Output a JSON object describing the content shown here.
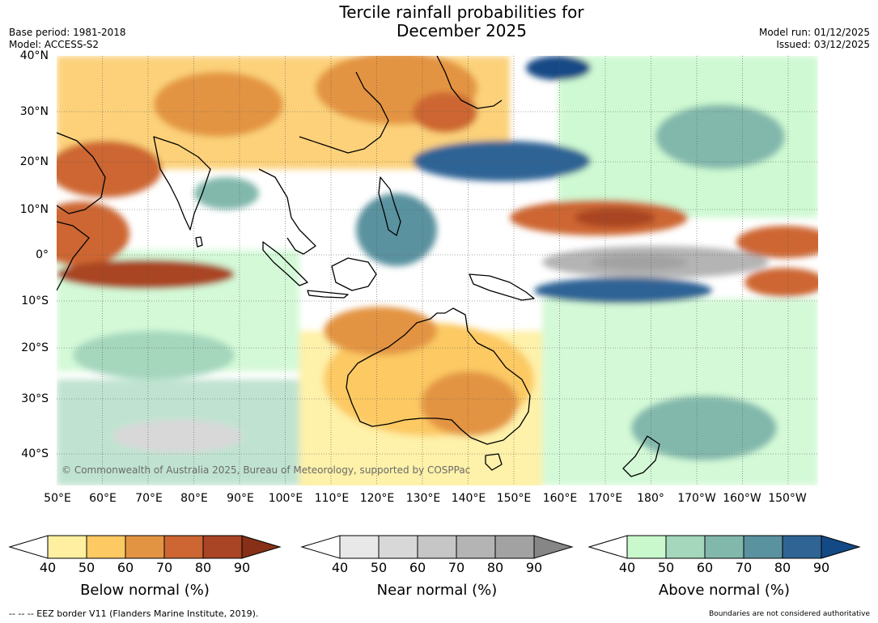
{
  "header": {
    "title_line1": "Tercile rainfall probabilities for",
    "title_line2": "December 2025",
    "base_period": "Base period: 1981-2018",
    "model": "Model: ACCESS-S2",
    "model_run": "Model run: 01/12/2025",
    "issued": "Issued: 03/12/2025"
  },
  "map": {
    "copyright": "© Commonwealth of Australia 2025, Bureau of Meteorology, supported by COSPPac",
    "lat_labels": [
      "40°N",
      "30°N",
      "20°N",
      "10°N",
      "0°",
      "10°S",
      "20°S",
      "30°S",
      "40°S"
    ],
    "lon_labels": [
      "50°E",
      "60°E",
      "70°E",
      "80°E",
      "90°E",
      "100°E",
      "110°E",
      "120°E",
      "130°E",
      "140°E",
      "150°E",
      "160°E",
      "170°E",
      "180°",
      "170°W",
      "160°W",
      "150°W"
    ]
  },
  "legends": {
    "below": {
      "label": "Below normal (%)",
      "ticks": [
        "40",
        "50",
        "60",
        "70",
        "80",
        "90"
      ],
      "colors": [
        "#fef0a0",
        "#fcc963",
        "#e39443",
        "#cd6632",
        "#a94424",
        "#863018"
      ]
    },
    "near": {
      "label": "Near normal (%)",
      "ticks": [
        "40",
        "50",
        "60",
        "70",
        "80",
        "90"
      ],
      "colors": [
        "#e8e8e8",
        "#d8d8d8",
        "#c6c6c6",
        "#b4b4b4",
        "#a2a2a2",
        "#868686"
      ]
    },
    "above": {
      "label": "Above normal (%)",
      "ticks": [
        "40",
        "50",
        "60",
        "70",
        "80",
        "90"
      ],
      "colors": [
        "#c9f8cd",
        "#a5d7bd",
        "#82b8ac",
        "#5a929f",
        "#2f6495",
        "#134a85"
      ]
    }
  },
  "footer": {
    "eez_note": "--  --  -- EEZ border V11 (Flanders Marine Institute, 2019).",
    "boundary_note": "Boundaries are not considered authoritative"
  }
}
